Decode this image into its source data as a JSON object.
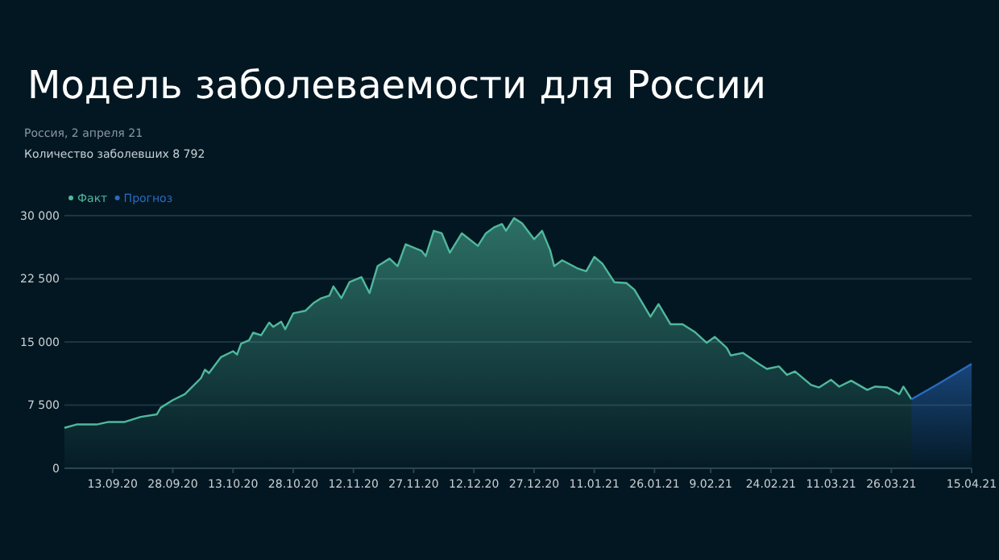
{
  "chart_data": {
    "type": "area",
    "title": "Модель заболеваемости для России",
    "subtitle": "Россия, 2 апреля 21",
    "annotations": [
      "Количество заболевших 8 792"
    ],
    "xlim": [
      "2020-09-01",
      "2021-04-15"
    ],
    "xticks": [
      {
        "value": "2020-09-13",
        "label": "13.09.20"
      },
      {
        "value": "2020-09-28",
        "label": "28.09.20"
      },
      {
        "value": "2020-10-13",
        "label": "13.10.20"
      },
      {
        "value": "2020-10-28",
        "label": "28.10.20"
      },
      {
        "value": "2020-11-12",
        "label": "12.11.20"
      },
      {
        "value": "2020-11-27",
        "label": "27.11.20"
      },
      {
        "value": "2020-12-12",
        "label": "12.12.20"
      },
      {
        "value": "2020-12-27",
        "label": "27.12.20"
      },
      {
        "value": "2021-01-11",
        "label": "11.01.21"
      },
      {
        "value": "2021-01-26",
        "label": "26.01.21"
      },
      {
        "value": "2021-02-09",
        "label": "9.02.21"
      },
      {
        "value": "2021-02-24",
        "label": "24.02.21"
      },
      {
        "value": "2021-03-11",
        "label": "11.03.21"
      },
      {
        "value": "2021-03-26",
        "label": "26.03.21"
      },
      {
        "value": "2021-04-15",
        "label": "15.04.21"
      }
    ],
    "ylim": [
      0,
      30000
    ],
    "yticks": [
      0,
      {
        "value": 7500,
        "label": "7 500"
      },
      {
        "value": 15000,
        "label": "15 000"
      },
      {
        "value": 22500,
        "label": "22 500"
      },
      {
        "value": 30000,
        "label": "30 000"
      }
    ],
    "grid": "y",
    "legend": "top left",
    "series": [
      {
        "name": "Факт",
        "color": "#4fb89c",
        "x": [
          "2020-09-01",
          "2020-09-04",
          "2020-09-09",
          "2020-09-12",
          "2020-09-16",
          "2020-09-20",
          "2020-09-24",
          "2020-09-25",
          "2020-09-28",
          "2020-10-01",
          "2020-10-05",
          "2020-10-06",
          "2020-10-07",
          "2020-10-10",
          "2020-10-13",
          "2020-10-14",
          "2020-10-15",
          "2020-10-17",
          "2020-10-18",
          "2020-10-20",
          "2020-10-22",
          "2020-10-23",
          "2020-10-25",
          "2020-10-26",
          "2020-10-28",
          "2020-10-31",
          "2020-11-02",
          "2020-11-04",
          "2020-11-06",
          "2020-11-07",
          "2020-11-09",
          "2020-11-11",
          "2020-11-14",
          "2020-11-16",
          "2020-11-18",
          "2020-11-21",
          "2020-11-23",
          "2020-11-25",
          "2020-11-29",
          "2020-11-30",
          "2020-12-02",
          "2020-12-04",
          "2020-12-06",
          "2020-12-09",
          "2020-12-13",
          "2020-12-15",
          "2020-12-17",
          "2020-12-19",
          "2020-12-20",
          "2020-12-22",
          "2020-12-24",
          "2020-12-27",
          "2020-12-29",
          "2020-12-31",
          "2021-01-01",
          "2021-01-03",
          "2021-01-07",
          "2021-01-09",
          "2021-01-11",
          "2021-01-13",
          "2021-01-16",
          "2021-01-19",
          "2021-01-21",
          "2021-01-23",
          "2021-01-25",
          "2021-01-27",
          "2021-01-30",
          "2021-02-02",
          "2021-02-05",
          "2021-02-08",
          "2021-02-10",
          "2021-02-13",
          "2021-02-14",
          "2021-02-17",
          "2021-02-21",
          "2021-02-23",
          "2021-02-26",
          "2021-02-28",
          "2021-03-02",
          "2021-03-06",
          "2021-03-08",
          "2021-03-11",
          "2021-03-13",
          "2021-03-16",
          "2021-03-20",
          "2021-03-22",
          "2021-03-25",
          "2021-03-28",
          "2021-03-29",
          "2021-03-31"
        ],
        "values": [
          4800,
          5200,
          5200,
          5500,
          5500,
          6100,
          6400,
          7200,
          8100,
          8800,
          10700,
          11700,
          11300,
          13200,
          13900,
          13500,
          14800,
          15200,
          16100,
          15800,
          17300,
          16800,
          17400,
          16500,
          18400,
          18700,
          19600,
          20200,
          20500,
          21600,
          20200,
          22100,
          22700,
          20800,
          24000,
          24900,
          24000,
          26600,
          25800,
          25200,
          28200,
          27900,
          25600,
          27900,
          26400,
          27900,
          28600,
          29000,
          28200,
          29700,
          29100,
          27200,
          28200,
          25900,
          24000,
          24700,
          23700,
          23400,
          25100,
          24300,
          22100,
          22000,
          21200,
          19600,
          18000,
          19500,
          17100,
          17100,
          16200,
          14900,
          15600,
          14300,
          13400,
          13700,
          12400,
          11800,
          12100,
          11100,
          11500,
          9900,
          9600,
          10500,
          9700,
          10400,
          9300,
          9700,
          9600,
          8800,
          9700,
          8200
        ]
      },
      {
        "name": "Прогноз",
        "color": "#2a6bc0",
        "x": [
          "2021-03-31",
          "2021-04-07",
          "2021-04-15"
        ],
        "values": [
          8200,
          10100,
          12400
        ]
      }
    ]
  }
}
